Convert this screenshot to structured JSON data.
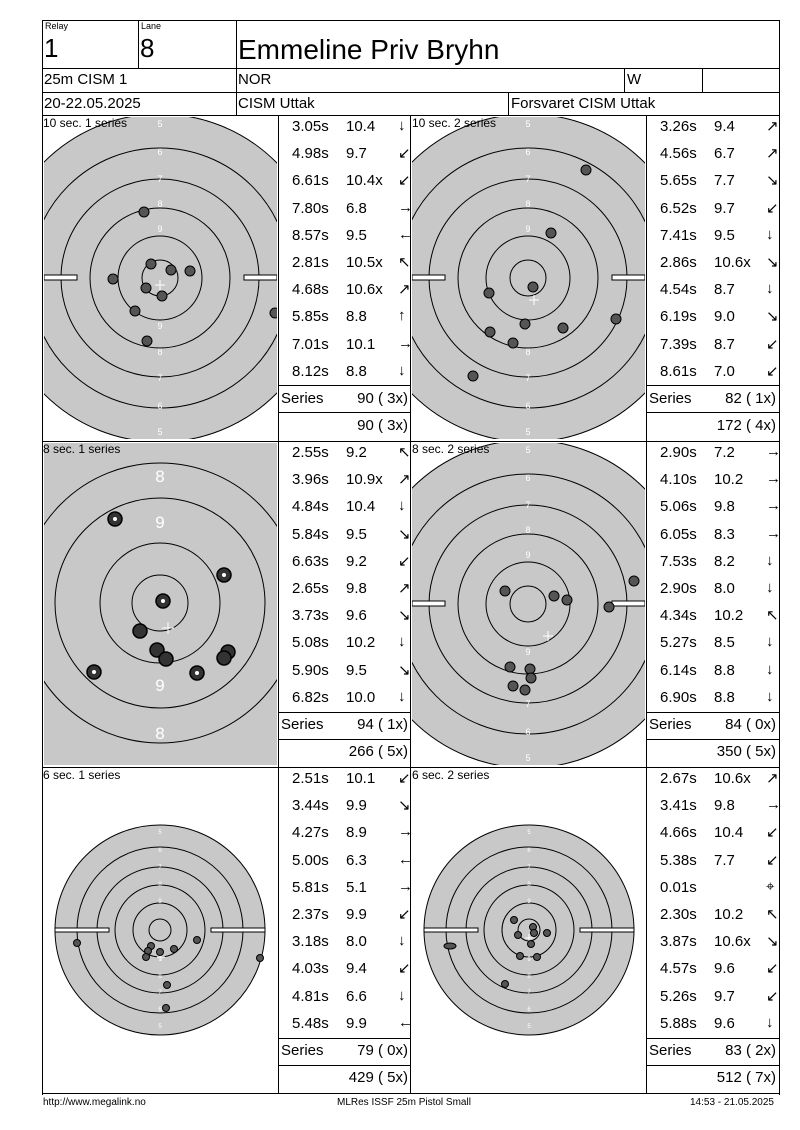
{
  "header": {
    "relay_label": "Relay",
    "relay": "1",
    "lane_label": "Lane",
    "lane": "8",
    "name": "Emmeline Priv Bryhn",
    "event": "25m CISM 1",
    "nation": "NOR",
    "gender": "W",
    "dates": "20-22.05.2025",
    "club": "CISM Uttak",
    "team": "Forsvaret CISM Uttak"
  },
  "panels": [
    {
      "title": "10 sec. 1 series",
      "shots": [
        {
          "t": "3.05s",
          "s": "10.4",
          "d": "↓"
        },
        {
          "t": "4.98s",
          "s": "9.7",
          "d": "↙"
        },
        {
          "t": "6.61s",
          "s": "10.4x",
          "d": "↙"
        },
        {
          "t": "7.80s",
          "s": "6.8",
          "d": "→"
        },
        {
          "t": "8.57s",
          "s": "9.5",
          "d": "←"
        },
        {
          "t": "2.81s",
          "s": "10.5x",
          "d": "↖"
        },
        {
          "t": "4.68s",
          "s": "10.6x",
          "d": "↗"
        },
        {
          "t": "5.85s",
          "s": "8.8",
          "d": "↑"
        },
        {
          "t": "7.01s",
          "s": "10.1",
          "d": "→"
        },
        {
          "t": "8.12s",
          "s": "8.8",
          "d": "↓"
        }
      ],
      "series_label": "Series",
      "series": "90 ( 3x)",
      "total": "90 ( 3x)"
    },
    {
      "title": "10 sec. 2 series",
      "shots": [
        {
          "t": "3.26s",
          "s": "9.4",
          "d": "↗"
        },
        {
          "t": "4.56s",
          "s": "6.7",
          "d": "↗"
        },
        {
          "t": "5.65s",
          "s": "7.7",
          "d": "↘"
        },
        {
          "t": "6.52s",
          "s": "9.7",
          "d": "↙"
        },
        {
          "t": "7.41s",
          "s": "9.5",
          "d": "↓"
        },
        {
          "t": "2.86s",
          "s": "10.6x",
          "d": "↘"
        },
        {
          "t": "4.54s",
          "s": "8.7",
          "d": "↓"
        },
        {
          "t": "6.19s",
          "s": "9.0",
          "d": "↘"
        },
        {
          "t": "7.39s",
          "s": "8.7",
          "d": "↙"
        },
        {
          "t": "8.61s",
          "s": "7.0",
          "d": "↙"
        }
      ],
      "series_label": "Series",
      "series": "82 ( 1x)",
      "total": "172 ( 4x)"
    },
    {
      "title": "8 sec. 1 series",
      "shots": [
        {
          "t": "2.55s",
          "s": "9.2",
          "d": "↖"
        },
        {
          "t": "3.96s",
          "s": "10.9x",
          "d": "↗"
        },
        {
          "t": "4.84s",
          "s": "10.4",
          "d": "↓"
        },
        {
          "t": "5.84s",
          "s": "9.5",
          "d": "↘"
        },
        {
          "t": "6.63s",
          "s": "9.2",
          "d": "↙"
        },
        {
          "t": "2.65s",
          "s": "9.8",
          "d": "↗"
        },
        {
          "t": "3.73s",
          "s": "9.6",
          "d": "↘"
        },
        {
          "t": "5.08s",
          "s": "10.2",
          "d": "↓"
        },
        {
          "t": "5.90s",
          "s": "9.5",
          "d": "↘"
        },
        {
          "t": "6.82s",
          "s": "10.0",
          "d": "↓"
        }
      ],
      "series_label": "Series",
      "series": "94 ( 1x)",
      "total": "266 ( 5x)"
    },
    {
      "title": "8 sec. 2 series",
      "shots": [
        {
          "t": "2.90s",
          "s": "7.2",
          "d": "→"
        },
        {
          "t": "4.10s",
          "s": "10.2",
          "d": "→"
        },
        {
          "t": "5.06s",
          "s": "9.8",
          "d": "→"
        },
        {
          "t": "6.05s",
          "s": "8.3",
          "d": "→"
        },
        {
          "t": "7.53s",
          "s": "8.2",
          "d": "↓"
        },
        {
          "t": "2.90s",
          "s": "8.0",
          "d": "↓"
        },
        {
          "t": "4.34s",
          "s": "10.2",
          "d": "↖"
        },
        {
          "t": "5.27s",
          "s": "8.5",
          "d": "↓"
        },
        {
          "t": "6.14s",
          "s": "8.8",
          "d": "↓"
        },
        {
          "t": "6.90s",
          "s": "8.8",
          "d": "↓"
        }
      ],
      "series_label": "Series",
      "series": "84 ( 0x)",
      "total": "350 ( 5x)"
    },
    {
      "title": "6 sec. 1 series",
      "shots": [
        {
          "t": "2.51s",
          "s": "10.1",
          "d": "↙"
        },
        {
          "t": "3.44s",
          "s": "9.9",
          "d": "↘"
        },
        {
          "t": "4.27s",
          "s": "8.9",
          "d": "→"
        },
        {
          "t": "5.00s",
          "s": "6.3",
          "d": "←"
        },
        {
          "t": "5.81s",
          "s": "5.1",
          "d": "→"
        },
        {
          "t": "2.37s",
          "s": "9.9",
          "d": "↙"
        },
        {
          "t": "3.18s",
          "s": "8.0",
          "d": "↓"
        },
        {
          "t": "4.03s",
          "s": "9.4",
          "d": "↙"
        },
        {
          "t": "4.81s",
          "s": "6.6",
          "d": "↓"
        },
        {
          "t": "5.48s",
          "s": "9.9",
          "d": "←"
        }
      ],
      "series_label": "Series",
      "series": "79 ( 0x)",
      "total": "429 ( 5x)"
    },
    {
      "title": "6 sec. 2 series",
      "shots": [
        {
          "t": "2.67s",
          "s": "10.6x",
          "d": "↗"
        },
        {
          "t": "3.41s",
          "s": "9.8",
          "d": "→"
        },
        {
          "t": "4.66s",
          "s": "10.4",
          "d": "↙"
        },
        {
          "t": "5.38s",
          "s": "7.7",
          "d": "↙"
        },
        {
          "t": "0.01s",
          "s": "",
          "d": "⌖"
        },
        {
          "t": "2.30s",
          "s": "10.2",
          "d": "↖"
        },
        {
          "t": "3.87s",
          "s": "10.6x",
          "d": "↘"
        },
        {
          "t": "4.57s",
          "s": "9.6",
          "d": "↙"
        },
        {
          "t": "5.26s",
          "s": "9.7",
          "d": "↙"
        },
        {
          "t": "5.88s",
          "s": "9.6",
          "d": "↓"
        }
      ],
      "series_label": "Series",
      "series": "83 ( 2x)",
      "total": "512 ( 7x)"
    }
  ],
  "ring_labels": {
    "precision": [
      "5",
      "6",
      "7",
      "8",
      "9"
    ],
    "zoom": [
      "8",
      "9",
      "9",
      "8"
    ]
  },
  "footer": {
    "left": "http://www.megalink.no",
    "center": "MLRes ISSF 25m Pistol Small",
    "right": "14:53 - 21.05.2025"
  },
  "colors": {
    "target_face": "#c8c8c8",
    "ring": "#000000",
    "ring_label": "#ffffff"
  }
}
